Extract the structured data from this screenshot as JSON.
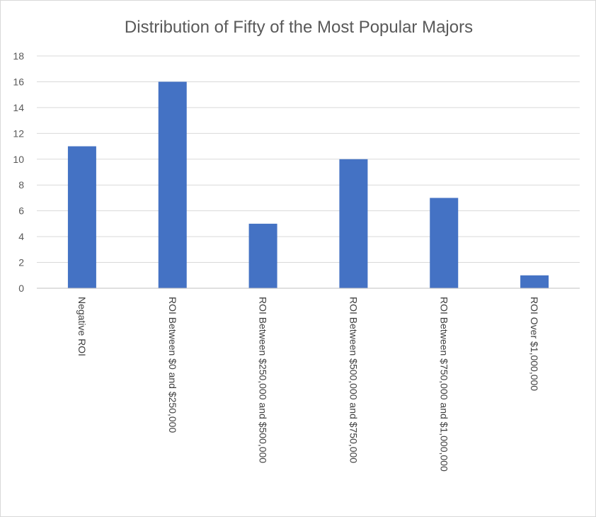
{
  "chart_data": {
    "type": "bar",
    "title": "Distribution of Fifty of the Most Popular Majors",
    "xlabel": "",
    "ylabel": "",
    "categories": [
      "Negative ROI",
      "ROI Between $0 and $250,000",
      "ROI Between $250,000 and $500,000",
      "ROI Between $500,000 and $750,000",
      "ROI Between $750,000 and $1,000,000",
      "ROI Over $1,000,000"
    ],
    "values": [
      11,
      16,
      5,
      10,
      7,
      1
    ],
    "ylim": [
      0,
      18
    ],
    "yticks": [
      "0",
      "2",
      "4",
      "6",
      "8",
      "10",
      "12",
      "14",
      "16",
      "18"
    ],
    "grid": true,
    "legend": "none",
    "bar_color": "#4472c4"
  }
}
